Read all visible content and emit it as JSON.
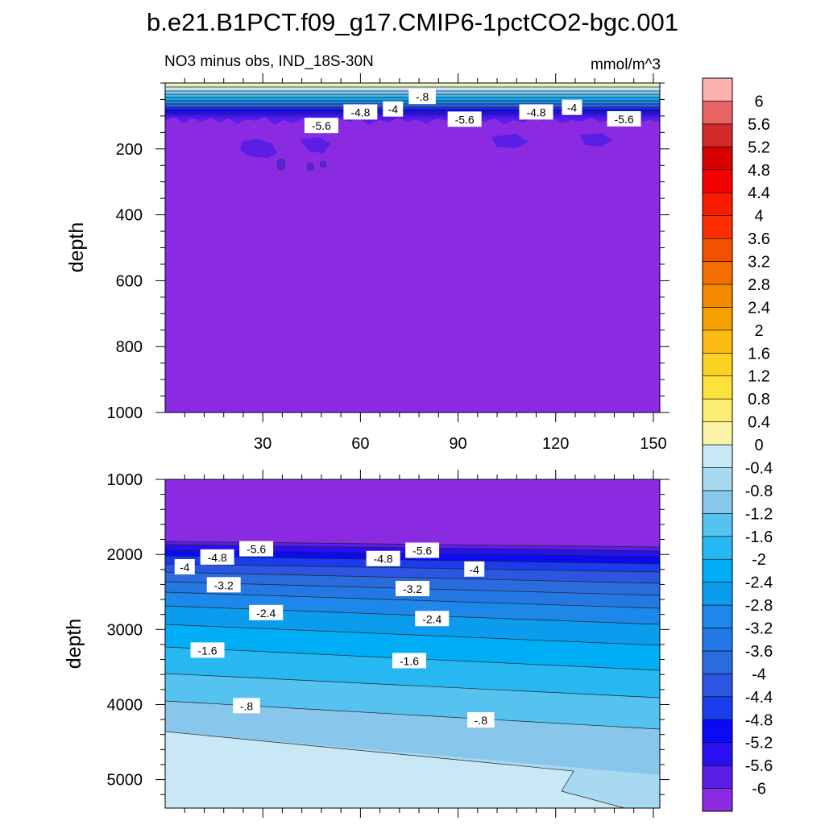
{
  "chart_data": {
    "type": "contour",
    "title": "b.e21.B1PCT.f09_g17.CMIP6-1pctCO2-bgc.001",
    "subtitle_left": "NO3 minus obs, IND_18S-30N",
    "subtitle_right": "mmol/m^3",
    "colorbar": {
      "levels": [
        "-6",
        "-5.6",
        "-5.2",
        "-4.8",
        "-4.4",
        "-4",
        "-3.6",
        "-3.2",
        "-2.8",
        "-2.4",
        "-2",
        "-1.6",
        "-1.2",
        "-0.8",
        "-0.4",
        "0",
        "0.4",
        "0.8",
        "1.2",
        "1.6",
        "2",
        "2.4",
        "2.8",
        "3.2",
        "3.6",
        "4",
        "4.4",
        "4.8",
        "5.2",
        "5.6",
        "6"
      ],
      "colors": [
        "#8a2be2",
        "#5a1ee6",
        "#2a10f0",
        "#0a0af5",
        "#1a3cec",
        "#2c55e2",
        "#2a6bdd",
        "#2378e4",
        "#1e88ea",
        "#0b9cee",
        "#00aef5",
        "#27b8f2",
        "#55c2ef",
        "#88c7eb",
        "#a9d8f1",
        "#c8e8f6",
        "#fbf4a6",
        "#faec74",
        "#fde23e",
        "#fbd220",
        "#fbbb12",
        "#f7a100",
        "#f58a00",
        "#f36e00",
        "#f25200",
        "#ff2e00",
        "#f81c00",
        "#f40000",
        "#d90000",
        "#d22a2a",
        "#e86464",
        "#fdb1b1"
      ]
    },
    "panels": [
      {
        "name": "upper",
        "x_range": [
          0,
          152
        ],
        "y_range": [
          0,
          1000
        ],
        "y_reversed": true,
        "ylabel": "depth",
        "xticks": [
          "30",
          "60",
          "90",
          "120",
          "150"
        ],
        "xtick_values": [
          30,
          60,
          90,
          120,
          150
        ],
        "yticks": [
          "200",
          "400",
          "600",
          "800",
          "1000"
        ],
        "ytick_values": [
          200,
          400,
          600,
          800,
          1000
        ],
        "contour_labels": [
          {
            "text": "-.8",
            "x": 79,
            "y": 42
          },
          {
            "text": "-4.8",
            "x": 60,
            "y": 89
          },
          {
            "text": "-4",
            "x": 70,
            "y": 80
          },
          {
            "text": "-5.6",
            "x": 48,
            "y": 130
          },
          {
            "text": "-5.6",
            "x": 92,
            "y": 111
          },
          {
            "text": "-4.8",
            "x": 114,
            "y": 89
          },
          {
            "text": "-4",
            "x": 125,
            "y": 75
          },
          {
            "text": "-5.6",
            "x": 141,
            "y": 110
          }
        ]
      },
      {
        "name": "lower",
        "x_range": [
          0,
          152
        ],
        "y_range": [
          1000,
          5380
        ],
        "y_reversed": true,
        "ylabel": "depth",
        "xticks": [
          "30",
          "60",
          "90",
          "120",
          "150"
        ],
        "xtick_values": [
          30,
          60,
          90,
          120,
          150
        ],
        "yticks": [
          "1000",
          "2000",
          "3000",
          "4000",
          "5000"
        ],
        "ytick_values": [
          1000,
          2000,
          3000,
          4000,
          5000
        ],
        "contour_labels": [
          {
            "text": "-5.6",
            "x": 28,
            "y": 1930
          },
          {
            "text": "-5.6",
            "x": 79,
            "y": 1950
          },
          {
            "text": "-4.8",
            "x": 16,
            "y": 2040
          },
          {
            "text": "-4.8",
            "x": 67,
            "y": 2060
          },
          {
            "text": "-4",
            "x": 6,
            "y": 2170
          },
          {
            "text": "-4",
            "x": 95,
            "y": 2200
          },
          {
            "text": "-3.2",
            "x": 18,
            "y": 2410
          },
          {
            "text": "-3.2",
            "x": 76,
            "y": 2460
          },
          {
            "text": "-2.4",
            "x": 31,
            "y": 2780
          },
          {
            "text": "-2.4",
            "x": 82,
            "y": 2860
          },
          {
            "text": "-1.6",
            "x": 13,
            "y": 3280
          },
          {
            "text": "-1.6",
            "x": 75,
            "y": 3420
          },
          {
            "text": "-.8",
            "x": 25,
            "y": 4020
          },
          {
            "text": "-.8",
            "x": 97,
            "y": 4210
          }
        ]
      }
    ]
  }
}
